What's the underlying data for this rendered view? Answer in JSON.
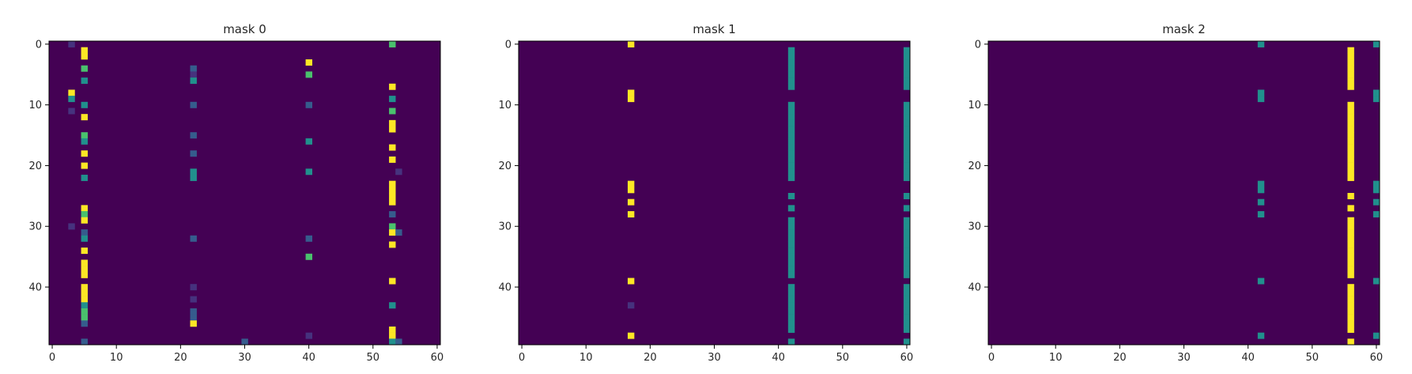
{
  "palette": {
    "background": "#440154",
    "low": "#46327e",
    "mid_low": "#365c8d",
    "mid": "#21908d",
    "mid_high": "#4ac16d",
    "high": "#fde725"
  },
  "chart_data": [
    {
      "type": "heatmap",
      "title": "mask 0",
      "x_ticks": [
        0,
        10,
        20,
        30,
        40,
        50,
        60
      ],
      "y_ticks": [
        0,
        10,
        20,
        30,
        40
      ],
      "xlim": [
        -0.5,
        60.5
      ],
      "ylim": [
        49.5,
        -0.5
      ],
      "background_value": 0,
      "cells": [
        {
          "x": 3,
          "y": 0,
          "v": 0.25
        },
        {
          "x": 3,
          "y": 8,
          "v": 1
        },
        {
          "x": 3,
          "y": 9,
          "v": 0.6
        },
        {
          "x": 3,
          "y": 11,
          "v": 0.2
        },
        {
          "x": 3,
          "y": 30,
          "v": 0.2
        },
        {
          "x": 5,
          "y": 1,
          "v": 1
        },
        {
          "x": 5,
          "y": 2,
          "v": 1
        },
        {
          "x": 5,
          "y": 4,
          "v": 0.8
        },
        {
          "x": 5,
          "y": 6,
          "v": 0.5
        },
        {
          "x": 5,
          "y": 10,
          "v": 0.5
        },
        {
          "x": 5,
          "y": 12,
          "v": 0.9
        },
        {
          "x": 5,
          "y": 15,
          "v": 0.7
        },
        {
          "x": 5,
          "y": 16,
          "v": 0.5
        },
        {
          "x": 5,
          "y": 18,
          "v": 0.9
        },
        {
          "x": 5,
          "y": 20,
          "v": 1
        },
        {
          "x": 5,
          "y": 22,
          "v": 0.5
        },
        {
          "x": 5,
          "y": 27,
          "v": 1
        },
        {
          "x": 5,
          "y": 28,
          "v": 0.8
        },
        {
          "x": 5,
          "y": 29,
          "v": 1
        },
        {
          "x": 5,
          "y": 31,
          "v": 0.4
        },
        {
          "x": 5,
          "y": 32,
          "v": 0.5
        },
        {
          "x": 5,
          "y": 34,
          "v": 1
        },
        {
          "x": 5,
          "y": 36,
          "v": 1
        },
        {
          "x": 5,
          "y": 37,
          "v": 1
        },
        {
          "x": 5,
          "y": 38,
          "v": 1
        },
        {
          "x": 5,
          "y": 40,
          "v": 1
        },
        {
          "x": 5,
          "y": 41,
          "v": 1
        },
        {
          "x": 5,
          "y": 42,
          "v": 1
        },
        {
          "x": 5,
          "y": 43,
          "v": 0.5
        },
        {
          "x": 5,
          "y": 44,
          "v": 0.7
        },
        {
          "x": 5,
          "y": 45,
          "v": 0.8
        },
        {
          "x": 5,
          "y": 46,
          "v": 0.3
        },
        {
          "x": 5,
          "y": 49,
          "v": 0.4
        },
        {
          "x": 22,
          "y": 4,
          "v": 0.3
        },
        {
          "x": 22,
          "y": 5,
          "v": 0.2
        },
        {
          "x": 22,
          "y": 6,
          "v": 0.5
        },
        {
          "x": 22,
          "y": 10,
          "v": 0.4
        },
        {
          "x": 22,
          "y": 15,
          "v": 0.3
        },
        {
          "x": 22,
          "y": 18,
          "v": 0.4
        },
        {
          "x": 22,
          "y": 21,
          "v": 0.5
        },
        {
          "x": 22,
          "y": 22,
          "v": 0.5
        },
        {
          "x": 22,
          "y": 32,
          "v": 0.4
        },
        {
          "x": 22,
          "y": 40,
          "v": 0.2
        },
        {
          "x": 22,
          "y": 42,
          "v": 0.15
        },
        {
          "x": 22,
          "y": 44,
          "v": 0.4
        },
        {
          "x": 22,
          "y": 45,
          "v": 0.3
        },
        {
          "x": 22,
          "y": 46,
          "v": 1
        },
        {
          "x": 30,
          "y": 49,
          "v": 0.3
        },
        {
          "x": 40,
          "y": 3,
          "v": 1
        },
        {
          "x": 40,
          "y": 5,
          "v": 0.7
        },
        {
          "x": 40,
          "y": 10,
          "v": 0.3
        },
        {
          "x": 40,
          "y": 16,
          "v": 0.5
        },
        {
          "x": 40,
          "y": 21,
          "v": 0.5
        },
        {
          "x": 40,
          "y": 32,
          "v": 0.4
        },
        {
          "x": 40,
          "y": 35,
          "v": 0.8
        },
        {
          "x": 40,
          "y": 48,
          "v": 0.2
        },
        {
          "x": 53,
          "y": 0,
          "v": 0.75
        },
        {
          "x": 53,
          "y": 7,
          "v": 1
        },
        {
          "x": 53,
          "y": 9,
          "v": 0.5
        },
        {
          "x": 53,
          "y": 11,
          "v": 0.8
        },
        {
          "x": 53,
          "y": 13,
          "v": 1
        },
        {
          "x": 53,
          "y": 14,
          "v": 1
        },
        {
          "x": 53,
          "y": 17,
          "v": 1
        },
        {
          "x": 53,
          "y": 19,
          "v": 1
        },
        {
          "x": 53,
          "y": 23,
          "v": 1
        },
        {
          "x": 53,
          "y": 24,
          "v": 1
        },
        {
          "x": 53,
          "y": 25,
          "v": 1
        },
        {
          "x": 53,
          "y": 26,
          "v": 1
        },
        {
          "x": 53,
          "y": 28,
          "v": 0.4
        },
        {
          "x": 53,
          "y": 30,
          "v": 0.8
        },
        {
          "x": 53,
          "y": 31,
          "v": 1
        },
        {
          "x": 53,
          "y": 33,
          "v": 1
        },
        {
          "x": 53,
          "y": 39,
          "v": 1
        },
        {
          "x": 53,
          "y": 43,
          "v": 0.5
        },
        {
          "x": 53,
          "y": 47,
          "v": 1
        },
        {
          "x": 53,
          "y": 48,
          "v": 1
        },
        {
          "x": 53,
          "y": 49,
          "v": 0.5
        },
        {
          "x": 54,
          "y": 21,
          "v": 0.2
        },
        {
          "x": 54,
          "y": 31,
          "v": 0.4
        },
        {
          "x": 54,
          "y": 49,
          "v": 0.4
        }
      ]
    },
    {
      "type": "heatmap",
      "title": "mask 1",
      "x_ticks": [
        0,
        10,
        20,
        30,
        40,
        50,
        60
      ],
      "y_ticks": [
        0,
        10,
        20,
        30,
        40
      ],
      "xlim": [
        -0.5,
        60.5
      ],
      "ylim": [
        49.5,
        -0.5
      ],
      "background_value": 0,
      "cells": [
        {
          "x": 17,
          "y": 0,
          "v": 1
        },
        {
          "x": 17,
          "y": 8,
          "v": 1
        },
        {
          "x": 17,
          "y": 9,
          "v": 1
        },
        {
          "x": 17,
          "y": 23,
          "v": 1
        },
        {
          "x": 17,
          "y": 24,
          "v": 1
        },
        {
          "x": 17,
          "y": 26,
          "v": 1
        },
        {
          "x": 17,
          "y": 28,
          "v": 1
        },
        {
          "x": 17,
          "y": 39,
          "v": 1
        },
        {
          "x": 17,
          "y": 43,
          "v": 0.1
        },
        {
          "x": 17,
          "y": 48,
          "v": 1
        },
        {
          "x": 42,
          "y": 1,
          "v": 0.5
        },
        {
          "x": 42,
          "y": 2,
          "v": 0.5
        },
        {
          "x": 42,
          "y": 3,
          "v": 0.5
        },
        {
          "x": 42,
          "y": 4,
          "v": 0.5
        },
        {
          "x": 42,
          "y": 5,
          "v": 0.5
        },
        {
          "x": 42,
          "y": 6,
          "v": 0.5
        },
        {
          "x": 42,
          "y": 7,
          "v": 0.5
        },
        {
          "x": 42,
          "y": 10,
          "v": 0.5
        },
        {
          "x": 42,
          "y": 11,
          "v": 0.5
        },
        {
          "x": 42,
          "y": 12,
          "v": 0.5
        },
        {
          "x": 42,
          "y": 13,
          "v": 0.5
        },
        {
          "x": 42,
          "y": 14,
          "v": 0.5
        },
        {
          "x": 42,
          "y": 15,
          "v": 0.5
        },
        {
          "x": 42,
          "y": 16,
          "v": 0.5
        },
        {
          "x": 42,
          "y": 17,
          "v": 0.5
        },
        {
          "x": 42,
          "y": 18,
          "v": 0.5
        },
        {
          "x": 42,
          "y": 19,
          "v": 0.5
        },
        {
          "x": 42,
          "y": 20,
          "v": 0.5
        },
        {
          "x": 42,
          "y": 21,
          "v": 0.5
        },
        {
          "x": 42,
          "y": 22,
          "v": 0.5
        },
        {
          "x": 42,
          "y": 25,
          "v": 0.5
        },
        {
          "x": 42,
          "y": 27,
          "v": 0.5
        },
        {
          "x": 42,
          "y": 29,
          "v": 0.5
        },
        {
          "x": 42,
          "y": 30,
          "v": 0.5
        },
        {
          "x": 42,
          "y": 31,
          "v": 0.5
        },
        {
          "x": 42,
          "y": 32,
          "v": 0.5
        },
        {
          "x": 42,
          "y": 33,
          "v": 0.5
        },
        {
          "x": 42,
          "y": 34,
          "v": 0.5
        },
        {
          "x": 42,
          "y": 35,
          "v": 0.5
        },
        {
          "x": 42,
          "y": 36,
          "v": 0.5
        },
        {
          "x": 42,
          "y": 37,
          "v": 0.5
        },
        {
          "x": 42,
          "y": 38,
          "v": 0.5
        },
        {
          "x": 42,
          "y": 40,
          "v": 0.5
        },
        {
          "x": 42,
          "y": 41,
          "v": 0.5
        },
        {
          "x": 42,
          "y": 42,
          "v": 0.5
        },
        {
          "x": 42,
          "y": 43,
          "v": 0.5
        },
        {
          "x": 42,
          "y": 44,
          "v": 0.5
        },
        {
          "x": 42,
          "y": 45,
          "v": 0.5
        },
        {
          "x": 42,
          "y": 46,
          "v": 0.5
        },
        {
          "x": 42,
          "y": 47,
          "v": 0.5
        },
        {
          "x": 42,
          "y": 49,
          "v": 0.5
        },
        {
          "x": 60,
          "y": 1,
          "v": 0.5
        },
        {
          "x": 60,
          "y": 2,
          "v": 0.5
        },
        {
          "x": 60,
          "y": 3,
          "v": 0.5
        },
        {
          "x": 60,
          "y": 4,
          "v": 0.5
        },
        {
          "x": 60,
          "y": 5,
          "v": 0.5
        },
        {
          "x": 60,
          "y": 6,
          "v": 0.5
        },
        {
          "x": 60,
          "y": 7,
          "v": 0.5
        },
        {
          "x": 60,
          "y": 10,
          "v": 0.5
        },
        {
          "x": 60,
          "y": 11,
          "v": 0.5
        },
        {
          "x": 60,
          "y": 12,
          "v": 0.5
        },
        {
          "x": 60,
          "y": 13,
          "v": 0.5
        },
        {
          "x": 60,
          "y": 14,
          "v": 0.5
        },
        {
          "x": 60,
          "y": 15,
          "v": 0.5
        },
        {
          "x": 60,
          "y": 16,
          "v": 0.5
        },
        {
          "x": 60,
          "y": 17,
          "v": 0.5
        },
        {
          "x": 60,
          "y": 18,
          "v": 0.5
        },
        {
          "x": 60,
          "y": 19,
          "v": 0.5
        },
        {
          "x": 60,
          "y": 20,
          "v": 0.5
        },
        {
          "x": 60,
          "y": 21,
          "v": 0.5
        },
        {
          "x": 60,
          "y": 22,
          "v": 0.5
        },
        {
          "x": 60,
          "y": 25,
          "v": 0.5
        },
        {
          "x": 60,
          "y": 27,
          "v": 0.5
        },
        {
          "x": 60,
          "y": 29,
          "v": 0.5
        },
        {
          "x": 60,
          "y": 30,
          "v": 0.5
        },
        {
          "x": 60,
          "y": 31,
          "v": 0.5
        },
        {
          "x": 60,
          "y": 32,
          "v": 0.5
        },
        {
          "x": 60,
          "y": 33,
          "v": 0.5
        },
        {
          "x": 60,
          "y": 34,
          "v": 0.5
        },
        {
          "x": 60,
          "y": 35,
          "v": 0.5
        },
        {
          "x": 60,
          "y": 36,
          "v": 0.5
        },
        {
          "x": 60,
          "y": 37,
          "v": 0.5
        },
        {
          "x": 60,
          "y": 38,
          "v": 0.5
        },
        {
          "x": 60,
          "y": 40,
          "v": 0.5
        },
        {
          "x": 60,
          "y": 41,
          "v": 0.5
        },
        {
          "x": 60,
          "y": 42,
          "v": 0.5
        },
        {
          "x": 60,
          "y": 43,
          "v": 0.5
        },
        {
          "x": 60,
          "y": 44,
          "v": 0.5
        },
        {
          "x": 60,
          "y": 45,
          "v": 0.5
        },
        {
          "x": 60,
          "y": 46,
          "v": 0.5
        },
        {
          "x": 60,
          "y": 47,
          "v": 0.5
        },
        {
          "x": 60,
          "y": 49,
          "v": 0.5
        }
      ]
    },
    {
      "type": "heatmap",
      "title": "mask 2",
      "x_ticks": [
        0,
        10,
        20,
        30,
        40,
        50,
        60
      ],
      "y_ticks": [
        0,
        10,
        20,
        30,
        40
      ],
      "xlim": [
        -0.5,
        60.5
      ],
      "ylim": [
        49.5,
        -0.5
      ],
      "background_value": 0,
      "cells": [
        {
          "x": 42,
          "y": 0,
          "v": 0.5
        },
        {
          "x": 42,
          "y": 8,
          "v": 0.5
        },
        {
          "x": 42,
          "y": 9,
          "v": 0.5
        },
        {
          "x": 42,
          "y": 23,
          "v": 0.5
        },
        {
          "x": 42,
          "y": 24,
          "v": 0.5
        },
        {
          "x": 42,
          "y": 26,
          "v": 0.5
        },
        {
          "x": 42,
          "y": 28,
          "v": 0.5
        },
        {
          "x": 42,
          "y": 39,
          "v": 0.5
        },
        {
          "x": 42,
          "y": 48,
          "v": 0.5
        },
        {
          "x": 56,
          "y": 1,
          "v": 1
        },
        {
          "x": 56,
          "y": 2,
          "v": 1
        },
        {
          "x": 56,
          "y": 3,
          "v": 1
        },
        {
          "x": 56,
          "y": 4,
          "v": 1
        },
        {
          "x": 56,
          "y": 5,
          "v": 1
        },
        {
          "x": 56,
          "y": 6,
          "v": 1
        },
        {
          "x": 56,
          "y": 7,
          "v": 1
        },
        {
          "x": 56,
          "y": 10,
          "v": 1
        },
        {
          "x": 56,
          "y": 11,
          "v": 1
        },
        {
          "x": 56,
          "y": 12,
          "v": 1
        },
        {
          "x": 56,
          "y": 13,
          "v": 1
        },
        {
          "x": 56,
          "y": 14,
          "v": 1
        },
        {
          "x": 56,
          "y": 15,
          "v": 1
        },
        {
          "x": 56,
          "y": 16,
          "v": 1
        },
        {
          "x": 56,
          "y": 17,
          "v": 1
        },
        {
          "x": 56,
          "y": 18,
          "v": 1
        },
        {
          "x": 56,
          "y": 19,
          "v": 1
        },
        {
          "x": 56,
          "y": 20,
          "v": 1
        },
        {
          "x": 56,
          "y": 21,
          "v": 1
        },
        {
          "x": 56,
          "y": 22,
          "v": 1
        },
        {
          "x": 56,
          "y": 25,
          "v": 1
        },
        {
          "x": 56,
          "y": 27,
          "v": 1
        },
        {
          "x": 56,
          "y": 29,
          "v": 1
        },
        {
          "x": 56,
          "y": 30,
          "v": 1
        },
        {
          "x": 56,
          "y": 31,
          "v": 1
        },
        {
          "x": 56,
          "y": 32,
          "v": 1
        },
        {
          "x": 56,
          "y": 33,
          "v": 1
        },
        {
          "x": 56,
          "y": 34,
          "v": 1
        },
        {
          "x": 56,
          "y": 35,
          "v": 1
        },
        {
          "x": 56,
          "y": 36,
          "v": 1
        },
        {
          "x": 56,
          "y": 37,
          "v": 1
        },
        {
          "x": 56,
          "y": 38,
          "v": 1
        },
        {
          "x": 56,
          "y": 40,
          "v": 1
        },
        {
          "x": 56,
          "y": 41,
          "v": 1
        },
        {
          "x": 56,
          "y": 42,
          "v": 1
        },
        {
          "x": 56,
          "y": 43,
          "v": 1
        },
        {
          "x": 56,
          "y": 44,
          "v": 1
        },
        {
          "x": 56,
          "y": 45,
          "v": 1
        },
        {
          "x": 56,
          "y": 46,
          "v": 1
        },
        {
          "x": 56,
          "y": 47,
          "v": 1
        },
        {
          "x": 56,
          "y": 49,
          "v": 1
        },
        {
          "x": 60,
          "y": 0,
          "v": 0.5
        },
        {
          "x": 60,
          "y": 8,
          "v": 0.5
        },
        {
          "x": 60,
          "y": 9,
          "v": 0.5
        },
        {
          "x": 60,
          "y": 23,
          "v": 0.5
        },
        {
          "x": 60,
          "y": 24,
          "v": 0.5
        },
        {
          "x": 60,
          "y": 26,
          "v": 0.5
        },
        {
          "x": 60,
          "y": 28,
          "v": 0.5
        },
        {
          "x": 60,
          "y": 39,
          "v": 0.5
        },
        {
          "x": 60,
          "y": 48,
          "v": 0.5
        }
      ]
    }
  ]
}
